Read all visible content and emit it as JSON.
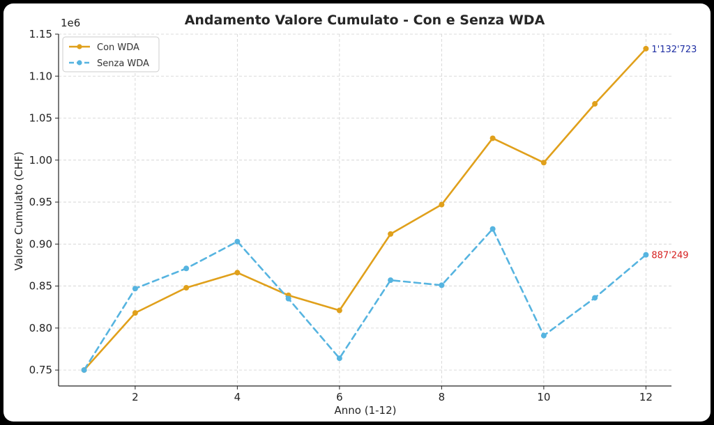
{
  "chart_data": {
    "type": "line",
    "title": "Andamento Valore Cumulato - Con e Senza WDA",
    "xlabel": "Anno (1-12)",
    "ylabel": "Valore Cumulato (CHF)",
    "y_offset_label": "1e6",
    "x": [
      1,
      2,
      3,
      4,
      5,
      6,
      7,
      8,
      9,
      10,
      11,
      12
    ],
    "xlim": [
      0.5,
      12.5
    ],
    "ylim": [
      0.731,
      1.15
    ],
    "xticks": [
      2,
      4,
      6,
      8,
      10,
      12
    ],
    "yticks": [
      0.75,
      0.8,
      0.85,
      0.9,
      0.95,
      1.0,
      1.05,
      1.1,
      1.15
    ],
    "ytick_labels": [
      "0.75",
      "0.80",
      "0.85",
      "0.90",
      "0.95",
      "1.00",
      "1.05",
      "1.10",
      "1.15"
    ],
    "grid": true,
    "legend_position": "top-left",
    "series": [
      {
        "name": "Con WDA",
        "color": "#E0A01B",
        "style": "solid",
        "values": [
          0.75,
          0.818,
          0.848,
          0.866,
          0.839,
          0.821,
          0.912,
          0.947,
          1.026,
          0.997,
          1.067,
          1.1327
        ],
        "end_label": "1'132'723",
        "end_label_color": "#1F2FA3"
      },
      {
        "name": "Senza WDA",
        "color": "#56B4E0",
        "style": "dashed",
        "values": [
          0.75,
          0.847,
          0.871,
          0.903,
          0.835,
          0.764,
          0.857,
          0.851,
          0.918,
          0.791,
          0.836,
          0.8872
        ],
        "end_label": "887'249",
        "end_label_color": "#D62020"
      }
    ]
  }
}
